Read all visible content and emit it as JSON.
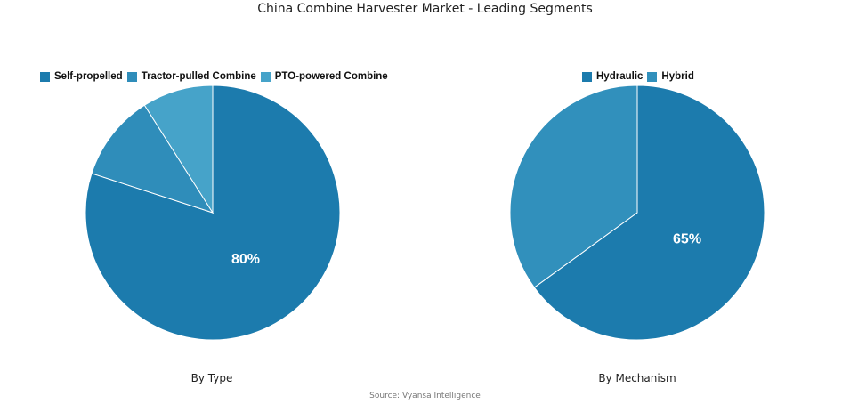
{
  "title": "China Combine Harvester Market - Leading Segments",
  "source": "Source: Vyansa Intelligence",
  "chart_data": [
    {
      "type": "pie",
      "caption": "By Type",
      "labels": [
        "Self-propelled",
        "Tractor-pulled Combine",
        "PTO-powered Combine"
      ],
      "values": [
        80,
        11,
        9
      ],
      "colors": [
        "#1c7bad",
        "#2f8dba",
        "#46a3c9"
      ],
      "data_labels": [
        "80%",
        "",
        ""
      ],
      "legend_position": "top"
    },
    {
      "type": "pie",
      "caption": "By Mechanism",
      "labels": [
        "Hydraulic",
        "Hybrid"
      ],
      "values": [
        65,
        35
      ],
      "colors": [
        "#1c7bad",
        "#3190bc"
      ],
      "data_labels": [
        "65%",
        ""
      ],
      "legend_position": "top"
    }
  ]
}
